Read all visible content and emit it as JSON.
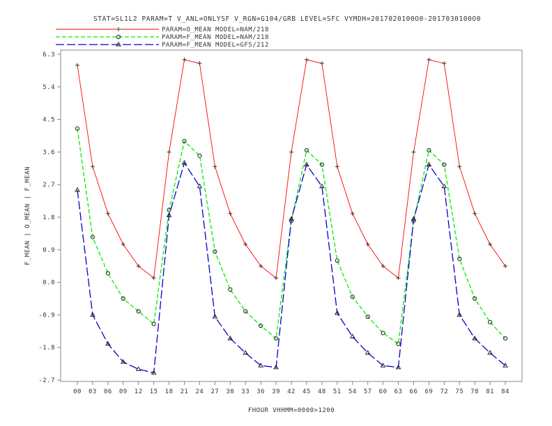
{
  "chart_data": {
    "type": "line",
    "title": "STAT=SL1L2 PARAM=T V_ANL=ONLYSF V_RGN=G104/GRB LEVEL=SFC VYMDH=2017020100O0-2017030100O0",
    "xlabel": "FHOUR VHHMM=0000>1200",
    "ylabel": "F_MEAN | O_MEAN | F_MEAN",
    "categories": [
      "00",
      "03",
      "06",
      "09",
      "12",
      "15",
      "18",
      "21",
      "24",
      "27",
      "30",
      "33",
      "36",
      "39",
      "42",
      "45",
      "48",
      "51",
      "54",
      "57",
      "60",
      "63",
      "66",
      "69",
      "72",
      "75",
      "78",
      "81",
      "84"
    ],
    "yticks": [
      "6.3",
      "5.4",
      "4.5",
      "3.6",
      "2.7",
      "1.8",
      "0.9",
      "0.0",
      "-0.9",
      "-1.8",
      "-2.7"
    ],
    "ylim": [
      -2.7,
      6.3
    ],
    "legend_position": "top-left",
    "grid": false,
    "series": [
      {
        "name": "PARAM=O_MEAN MODEL=NAM/218",
        "color": "#ff0000",
        "dash": "solid",
        "marker": "plus",
        "values": [
          6.0,
          3.2,
          1.9,
          1.05,
          0.45,
          0.12,
          3.6,
          6.15,
          6.05,
          3.2,
          1.9,
          1.05,
          0.45,
          0.12,
          3.6,
          6.15,
          6.05,
          3.2,
          1.9,
          1.05,
          0.45,
          0.12,
          3.6,
          6.15,
          6.05,
          3.2,
          1.9,
          1.05,
          0.45
        ]
      },
      {
        "name": "PARAM=F_MEAN MODEL=NAM/218",
        "color": "#00ee00",
        "dash": "dashed",
        "marker": "circle",
        "values": [
          4.25,
          1.25,
          0.25,
          -0.45,
          -0.8,
          -1.15,
          2.0,
          3.9,
          3.5,
          0.85,
          -0.2,
          -0.8,
          -1.2,
          -1.55,
          1.7,
          3.65,
          3.25,
          0.6,
          -0.4,
          -0.95,
          -1.4,
          -1.7,
          1.7,
          3.65,
          3.25,
          0.65,
          -0.45,
          -1.1,
          -1.55
        ]
      },
      {
        "name": "PARAM=F_MEAN MODEL=GFS/212",
        "color": "#0000cc",
        "dash": "longdash",
        "marker": "triangle",
        "values": [
          2.55,
          -0.9,
          -1.7,
          -2.2,
          -2.4,
          -2.5,
          1.85,
          3.3,
          2.65,
          -0.95,
          -1.55,
          -1.95,
          -2.3,
          -2.35,
          1.75,
          3.25,
          2.65,
          -0.85,
          -1.5,
          -1.95,
          -2.3,
          -2.35,
          1.75,
          3.25,
          2.65,
          -0.9,
          -1.55,
          -1.95,
          -2.3
        ]
      }
    ]
  }
}
